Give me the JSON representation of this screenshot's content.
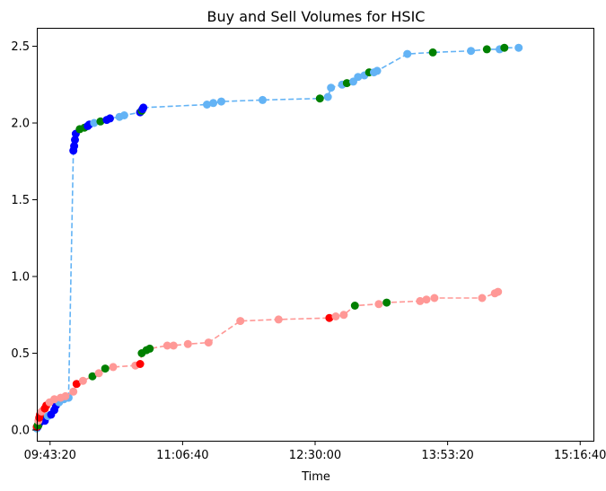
{
  "chart_data": {
    "type": "line",
    "title": "Buy and Sell Volumes for HSIC",
    "xlabel": "Time",
    "ylabel": "",
    "x_unit": "time of day (HH:MM:SS)",
    "xlim": [
      "09:35:00",
      "15:25:00"
    ],
    "ylim": [
      -0.07,
      2.62
    ],
    "x_ticks": [
      "09:43:20",
      "11:06:40",
      "12:30:00",
      "13:53:20",
      "15:16:40"
    ],
    "y_ticks": [
      0.0,
      0.5,
      1.0,
      1.5,
      2.0,
      2.5
    ],
    "grid": false,
    "legend": "none",
    "series": [
      {
        "role": "buy",
        "line_color": "#63b3f5",
        "line_style": "dashed",
        "points": [
          {
            "t": "09:35:00",
            "y": 0.01,
            "c": "#63b3f5"
          },
          {
            "t": "09:35:30",
            "y": 0.02,
            "c": "#0000ff"
          },
          {
            "t": "09:36:00",
            "y": 0.03,
            "c": "#008000"
          },
          {
            "t": "09:37:00",
            "y": 0.05,
            "c": "#0000ff"
          },
          {
            "t": "09:38:00",
            "y": 0.07,
            "c": "#008000"
          },
          {
            "t": "09:40:00",
            "y": 0.06,
            "c": "#0000ff"
          },
          {
            "t": "09:42:00",
            "y": 0.09,
            "c": "#63b3f5"
          },
          {
            "t": "09:44:00",
            "y": 0.1,
            "c": "#0000ff"
          },
          {
            "t": "09:46:00",
            "y": 0.13,
            "c": "#0000ff"
          },
          {
            "t": "09:47:00",
            "y": 0.16,
            "c": "#0000ff"
          },
          {
            "t": "09:49:00",
            "y": 0.18,
            "c": "#63b3f5"
          },
          {
            "t": "09:52:00",
            "y": 0.2,
            "c": "#63b3f5"
          },
          {
            "t": "09:55:00",
            "y": 0.21,
            "c": "#63b3f5"
          },
          {
            "t": "09:58:00",
            "y": 1.82,
            "c": "#0000ff"
          },
          {
            "t": "09:58:30",
            "y": 1.85,
            "c": "#0000ff"
          },
          {
            "t": "09:59:00",
            "y": 1.89,
            "c": "#0000ff"
          },
          {
            "t": "09:59:30",
            "y": 1.93,
            "c": "#0000ff"
          },
          {
            "t": "10:02:00",
            "y": 1.96,
            "c": "#008000"
          },
          {
            "t": "10:05:00",
            "y": 1.97,
            "c": "#008000"
          },
          {
            "t": "10:07:00",
            "y": 1.98,
            "c": "#0000ff"
          },
          {
            "t": "10:08:00",
            "y": 1.99,
            "c": "#0000ff"
          },
          {
            "t": "10:11:00",
            "y": 2.0,
            "c": "#63b3f5"
          },
          {
            "t": "10:15:00",
            "y": 2.01,
            "c": "#008000"
          },
          {
            "t": "10:19:00",
            "y": 2.02,
            "c": "#0000ff"
          },
          {
            "t": "10:21:00",
            "y": 2.03,
            "c": "#0000ff"
          },
          {
            "t": "10:27:00",
            "y": 2.04,
            "c": "#63b3f5"
          },
          {
            "t": "10:30:00",
            "y": 2.05,
            "c": "#63b3f5"
          },
          {
            "t": "10:40:00",
            "y": 2.07,
            "c": "#0000ff"
          },
          {
            "t": "10:41:00",
            "y": 2.08,
            "c": "#008000"
          },
          {
            "t": "10:41:30",
            "y": 2.09,
            "c": "#0000ff"
          },
          {
            "t": "10:42:00",
            "y": 2.1,
            "c": "#0000ff"
          },
          {
            "t": "11:22:00",
            "y": 2.12,
            "c": "#63b3f5"
          },
          {
            "t": "11:26:00",
            "y": 2.13,
            "c": "#63b3f5"
          },
          {
            "t": "11:31:00",
            "y": 2.14,
            "c": "#63b3f5"
          },
          {
            "t": "11:57:00",
            "y": 2.15,
            "c": "#63b3f5"
          },
          {
            "t": "12:33:00",
            "y": 2.16,
            "c": "#008000"
          },
          {
            "t": "12:38:00",
            "y": 2.17,
            "c": "#63b3f5"
          },
          {
            "t": "12:40:00",
            "y": 2.23,
            "c": "#63b3f5"
          },
          {
            "t": "12:47:00",
            "y": 2.25,
            "c": "#63b3f5"
          },
          {
            "t": "12:50:00",
            "y": 2.26,
            "c": "#008000"
          },
          {
            "t": "12:54:00",
            "y": 2.27,
            "c": "#63b3f5"
          },
          {
            "t": "12:57:00",
            "y": 2.3,
            "c": "#63b3f5"
          },
          {
            "t": "13:01:00",
            "y": 2.31,
            "c": "#63b3f5"
          },
          {
            "t": "13:04:00",
            "y": 2.33,
            "c": "#008000"
          },
          {
            "t": "13:07:00",
            "y": 2.33,
            "c": "#63b3f5"
          },
          {
            "t": "13:09:00",
            "y": 2.34,
            "c": "#63b3f5"
          },
          {
            "t": "13:28:00",
            "y": 2.45,
            "c": "#63b3f5"
          },
          {
            "t": "13:44:00",
            "y": 2.46,
            "c": "#008000"
          },
          {
            "t": "14:08:00",
            "y": 2.47,
            "c": "#63b3f5"
          },
          {
            "t": "14:18:00",
            "y": 2.48,
            "c": "#008000"
          },
          {
            "t": "14:26:00",
            "y": 2.48,
            "c": "#63b3f5"
          },
          {
            "t": "14:29:00",
            "y": 2.49,
            "c": "#008000"
          },
          {
            "t": "14:38:00",
            "y": 2.49,
            "c": "#63b3f5"
          }
        ]
      },
      {
        "role": "sell",
        "line_color": "#ff9896",
        "line_style": "dashed",
        "points": [
          {
            "t": "09:35:00",
            "y": 0.02,
            "c": "#ff0000"
          },
          {
            "t": "09:35:30",
            "y": 0.03,
            "c": "#008000"
          },
          {
            "t": "09:36:00",
            "y": 0.06,
            "c": "#ff9896"
          },
          {
            "t": "09:36:30",
            "y": 0.08,
            "c": "#ff0000"
          },
          {
            "t": "09:37:00",
            "y": 0.1,
            "c": "#ff0000"
          },
          {
            "t": "09:38:00",
            "y": 0.12,
            "c": "#ff9896"
          },
          {
            "t": "09:40:00",
            "y": 0.14,
            "c": "#ff0000"
          },
          {
            "t": "09:41:00",
            "y": 0.16,
            "c": "#ff0000"
          },
          {
            "t": "09:43:00",
            "y": 0.18,
            "c": "#ff9896"
          },
          {
            "t": "09:46:00",
            "y": 0.2,
            "c": "#ff9896"
          },
          {
            "t": "09:50:00",
            "y": 0.21,
            "c": "#ff9896"
          },
          {
            "t": "09:53:00",
            "y": 0.22,
            "c": "#ff9896"
          },
          {
            "t": "09:58:00",
            "y": 0.25,
            "c": "#ff9896"
          },
          {
            "t": "10:00:00",
            "y": 0.3,
            "c": "#ff0000"
          },
          {
            "t": "10:04:00",
            "y": 0.32,
            "c": "#ff9896"
          },
          {
            "t": "10:10:00",
            "y": 0.35,
            "c": "#008000"
          },
          {
            "t": "10:14:00",
            "y": 0.37,
            "c": "#ff9896"
          },
          {
            "t": "10:18:00",
            "y": 0.4,
            "c": "#008000"
          },
          {
            "t": "10:23:00",
            "y": 0.41,
            "c": "#ff9896"
          },
          {
            "t": "10:37:00",
            "y": 0.42,
            "c": "#ff9896"
          },
          {
            "t": "10:40:00",
            "y": 0.43,
            "c": "#ff0000"
          },
          {
            "t": "10:41:00",
            "y": 0.5,
            "c": "#008000"
          },
          {
            "t": "10:44:00",
            "y": 0.52,
            "c": "#008000"
          },
          {
            "t": "10:46:00",
            "y": 0.53,
            "c": "#008000"
          },
          {
            "t": "10:57:00",
            "y": 0.55,
            "c": "#ff9896"
          },
          {
            "t": "11:01:00",
            "y": 0.55,
            "c": "#ff9896"
          },
          {
            "t": "11:10:00",
            "y": 0.56,
            "c": "#ff9896"
          },
          {
            "t": "11:23:00",
            "y": 0.57,
            "c": "#ff9896"
          },
          {
            "t": "11:43:00",
            "y": 0.71,
            "c": "#ff9896"
          },
          {
            "t": "12:07:00",
            "y": 0.72,
            "c": "#ff9896"
          },
          {
            "t": "12:39:00",
            "y": 0.73,
            "c": "#ff0000"
          },
          {
            "t": "12:43:00",
            "y": 0.74,
            "c": "#ff9896"
          },
          {
            "t": "12:48:00",
            "y": 0.75,
            "c": "#ff9896"
          },
          {
            "t": "12:55:00",
            "y": 0.81,
            "c": "#008000"
          },
          {
            "t": "13:10:00",
            "y": 0.82,
            "c": "#ff9896"
          },
          {
            "t": "13:15:00",
            "y": 0.83,
            "c": "#008000"
          },
          {
            "t": "13:36:00",
            "y": 0.84,
            "c": "#ff9896"
          },
          {
            "t": "13:40:00",
            "y": 0.85,
            "c": "#ff9896"
          },
          {
            "t": "13:45:00",
            "y": 0.86,
            "c": "#ff9896"
          },
          {
            "t": "14:15:00",
            "y": 0.86,
            "c": "#ff9896"
          },
          {
            "t": "14:23:00",
            "y": 0.89,
            "c": "#ff9896"
          },
          {
            "t": "14:25:00",
            "y": 0.9,
            "c": "#ff9896"
          }
        ]
      }
    ]
  }
}
